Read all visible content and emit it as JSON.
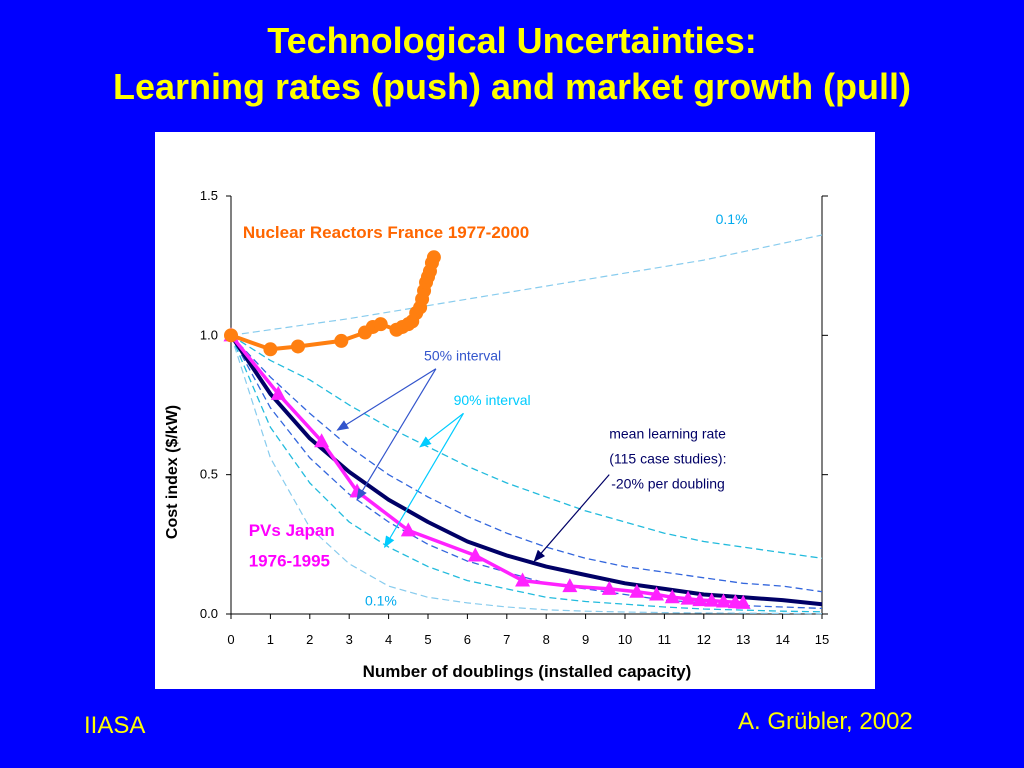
{
  "slide": {
    "title_line1": "Technological Uncertainties:",
    "title_line2": "Learning rates (push) and market growth (pull)",
    "footer_left": "IIASA",
    "footer_right": "A. Grübler, 2002"
  },
  "colors": {
    "background": "#0000ff",
    "title": "#ffff00",
    "nuclear": "#ff7f10",
    "pv": "#ff22ff",
    "mean": "#000066",
    "interval50": "#3366dd",
    "interval90": "#22bbdd",
    "interval01": "#88ccee"
  },
  "chart_data": {
    "type": "line",
    "xlabel": "Number of doublings (installed capacity)",
    "ylabel": "Cost index ($/kW)",
    "xlim": [
      0,
      15
    ],
    "ylim": [
      0,
      1.5
    ],
    "xticks": [
      "0",
      "1",
      "2",
      "3",
      "4",
      "5",
      "6",
      "7",
      "8",
      "9",
      "10",
      "11",
      "12",
      "13",
      "14",
      "15"
    ],
    "yticks": [
      "0.0",
      "0.5",
      "1.0",
      "1.5"
    ],
    "grid": false,
    "series": [
      {
        "name": "Nuclear Reactors France 1977-2000",
        "style": "line-circle",
        "x": [
          0,
          1.0,
          1.7,
          2.8,
          3.4,
          3.6,
          3.8,
          4.2,
          4.35,
          4.5,
          4.6,
          4.7,
          4.8,
          4.85,
          4.9,
          4.95,
          5.0,
          5.05,
          5.1,
          5.15
        ],
        "y": [
          1.0,
          0.95,
          0.96,
          0.98,
          1.01,
          1.03,
          1.04,
          1.02,
          1.03,
          1.04,
          1.05,
          1.08,
          1.1,
          1.13,
          1.16,
          1.19,
          1.21,
          1.23,
          1.26,
          1.28
        ]
      },
      {
        "name": "PVs Japan 1976-1995",
        "style": "line-triangle",
        "x": [
          0,
          1.2,
          2.3,
          3.2,
          4.5,
          6.2,
          7.4,
          8.6,
          9.6,
          10.3,
          10.8,
          11.2,
          11.6,
          11.9,
          12.2,
          12.5,
          12.8,
          13.0
        ],
        "y": [
          1.0,
          0.79,
          0.62,
          0.44,
          0.3,
          0.21,
          0.12,
          0.1,
          0.09,
          0.08,
          0.07,
          0.06,
          0.055,
          0.05,
          0.048,
          0.045,
          0.042,
          0.04
        ]
      },
      {
        "name": "mean learning rate",
        "style": "solid-thick",
        "x": [
          0,
          1,
          2,
          3,
          4,
          5,
          6,
          7,
          8,
          9,
          10,
          11,
          12,
          13,
          14,
          15
        ],
        "y": [
          1.0,
          0.79,
          0.63,
          0.51,
          0.41,
          0.33,
          0.26,
          0.21,
          0.17,
          0.14,
          0.11,
          0.09,
          0.07,
          0.06,
          0.05,
          0.035
        ]
      },
      {
        "name": "0.1% upper",
        "style": "dashed-light",
        "x": [
          0,
          3,
          6,
          9,
          12,
          15
        ],
        "y": [
          1.0,
          1.06,
          1.13,
          1.2,
          1.27,
          1.36
        ]
      },
      {
        "name": "90% interval upper",
        "style": "dashed-cyan",
        "x": [
          0,
          1,
          2,
          3,
          4,
          5,
          6,
          7,
          8,
          9,
          10,
          11,
          12,
          13,
          14,
          15
        ],
        "y": [
          1.0,
          0.91,
          0.84,
          0.75,
          0.67,
          0.6,
          0.53,
          0.47,
          0.42,
          0.37,
          0.33,
          0.29,
          0.26,
          0.24,
          0.22,
          0.2
        ]
      },
      {
        "name": "50% interval upper",
        "style": "dashed-blue",
        "x": [
          0,
          1,
          2,
          3,
          4,
          5,
          6,
          7,
          8,
          9,
          10,
          11,
          12,
          13,
          14,
          15
        ],
        "y": [
          1.0,
          0.85,
          0.72,
          0.6,
          0.5,
          0.42,
          0.35,
          0.29,
          0.24,
          0.2,
          0.17,
          0.15,
          0.13,
          0.11,
          0.1,
          0.08
        ]
      },
      {
        "name": "50% interval lower",
        "style": "dashed-blue",
        "x": [
          0,
          1,
          2,
          3,
          4,
          5,
          6,
          7,
          8,
          9,
          10,
          11,
          12,
          13,
          14,
          15
        ],
        "y": [
          1.0,
          0.74,
          0.56,
          0.43,
          0.33,
          0.25,
          0.19,
          0.15,
          0.11,
          0.09,
          0.07,
          0.05,
          0.04,
          0.03,
          0.025,
          0.02
        ]
      },
      {
        "name": "90% interval lower",
        "style": "dashed-cyan",
        "x": [
          0,
          1,
          2,
          3,
          4,
          5,
          6,
          7,
          8,
          9,
          10,
          11,
          12,
          13,
          14,
          15
        ],
        "y": [
          1.0,
          0.67,
          0.47,
          0.33,
          0.24,
          0.17,
          0.12,
          0.09,
          0.06,
          0.045,
          0.035,
          0.025,
          0.018,
          0.014,
          0.01,
          0.008
        ]
      },
      {
        "name": "0.1% lower",
        "style": "dashed-light",
        "x": [
          0,
          1,
          2,
          3,
          4,
          5,
          6,
          7,
          8,
          9,
          10,
          11,
          12,
          13,
          14,
          15
        ],
        "y": [
          1.0,
          0.56,
          0.31,
          0.18,
          0.1,
          0.06,
          0.04,
          0.025,
          0.015,
          0.01,
          0.007,
          0.005,
          0.004,
          0.003,
          0.002,
          0.001
        ]
      }
    ],
    "annotations": [
      {
        "id": "nuclear",
        "text": "Nuclear Reactors France 1977-2000",
        "color": "#ff6600",
        "bold": true,
        "x": 0.3,
        "y": 1.35
      },
      {
        "id": "pv1",
        "text": "PVs Japan",
        "color": "#ff00ff",
        "bold": true,
        "x": 0.45,
        "y": 0.28
      },
      {
        "id": "pv2",
        "text": "1976-1995",
        "color": "#ff00ff",
        "bold": true,
        "x": 0.45,
        "y": 0.17
      },
      {
        "id": "i50",
        "text": "50% interval",
        "color": "#3355cc",
        "bold": false,
        "x": 4.9,
        "y": 0.91
      },
      {
        "id": "i90",
        "text": "90% interval",
        "color": "#00ccff",
        "bold": false,
        "x": 5.65,
        "y": 0.75
      },
      {
        "id": "mean1",
        "text": "mean learning rate",
        "color": "#000066",
        "bold": false,
        "x": 9.6,
        "y": 0.63
      },
      {
        "id": "mean2",
        "text": "(115 case studies):",
        "color": "#000066",
        "bold": false,
        "x": 9.6,
        "y": 0.54
      },
      {
        "id": "mean3",
        "text": "-20% per doubling",
        "color": "#000066",
        "bold": false,
        "x": 9.65,
        "y": 0.45
      },
      {
        "id": "p01top",
        "text": "0.1%",
        "color": "#00aaee",
        "bold": false,
        "x": 12.3,
        "y": 1.4
      },
      {
        "id": "p01bot",
        "text": "0.1%",
        "color": "#00aaee",
        "bold": false,
        "x": 3.4,
        "y": 0.03
      }
    ],
    "arrows": [
      {
        "color": "#3355cc",
        "from": [
          5.2,
          0.88
        ],
        "to": [
          2.7,
          0.66
        ]
      },
      {
        "color": "#3355cc",
        "from": [
          5.2,
          0.88
        ],
        "to": [
          3.2,
          0.41
        ]
      },
      {
        "color": "#00ccff",
        "from": [
          5.9,
          0.72
        ],
        "to": [
          4.8,
          0.6
        ]
      },
      {
        "color": "#00ccff",
        "from": [
          5.9,
          0.72
        ],
        "to": [
          3.9,
          0.24
        ]
      },
      {
        "color": "#000066",
        "from": [
          9.6,
          0.5
        ],
        "to": [
          7.7,
          0.19
        ]
      }
    ]
  }
}
